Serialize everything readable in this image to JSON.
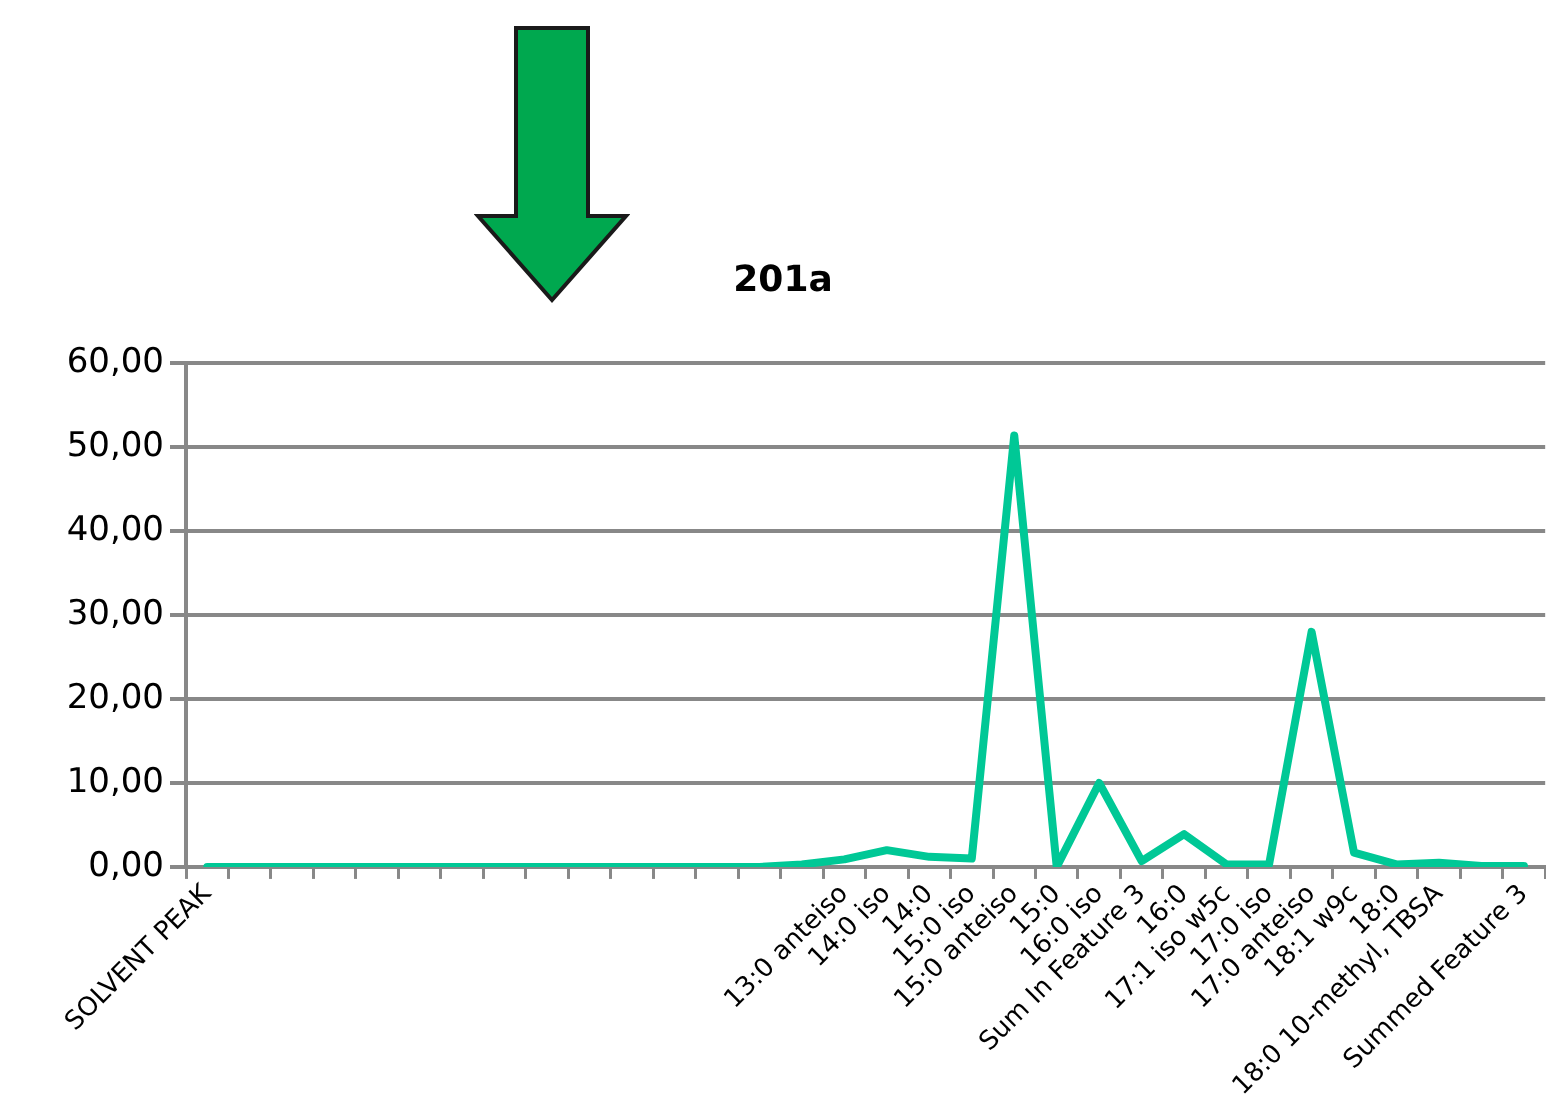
{
  "chart_data": {
    "type": "line",
    "title": "201a",
    "categories": [
      "SOLVENT PEAK",
      null,
      null,
      null,
      null,
      null,
      null,
      null,
      null,
      null,
      null,
      null,
      null,
      null,
      null,
      "13:0 anteiso",
      "14:0 iso",
      "14:0",
      "15:0 iso",
      "15:0 anteiso",
      "15:0",
      "16:0 iso",
      "Sum In Feature 3",
      "16:0",
      "17:1 iso w5c",
      "17:0 iso",
      "17:0 anteiso",
      "18:1 w9c",
      "18:0",
      "18:0 10-methyl, TBSA",
      null,
      "Summed Feature 3"
    ],
    "series": [
      {
        "color": "#00c896",
        "values": [
          0,
          0,
          0,
          0,
          0,
          0,
          0,
          0,
          0,
          0,
          0,
          0,
          0,
          0,
          0.3,
          0.9,
          2.0,
          1.2,
          1.0,
          51.4,
          0,
          10.0,
          0.7,
          3.9,
          0.3,
          0.3,
          28.0,
          1.7,
          0.3,
          0.5,
          0.1,
          0.1
        ]
      }
    ],
    "ylim": [
      0,
      60
    ],
    "yticks": [
      {
        "value": 0,
        "label": "0,00"
      },
      {
        "value": 10,
        "label": "10,00"
      },
      {
        "value": 20,
        "label": "20,00"
      },
      {
        "value": 30,
        "label": "30,00"
      },
      {
        "value": 40,
        "label": "40,00"
      },
      {
        "value": 50,
        "label": "50,00"
      },
      {
        "value": 60,
        "label": "60,00"
      }
    ],
    "grid": "y",
    "legend": false,
    "marker": "none",
    "line_style": "solid"
  }
}
